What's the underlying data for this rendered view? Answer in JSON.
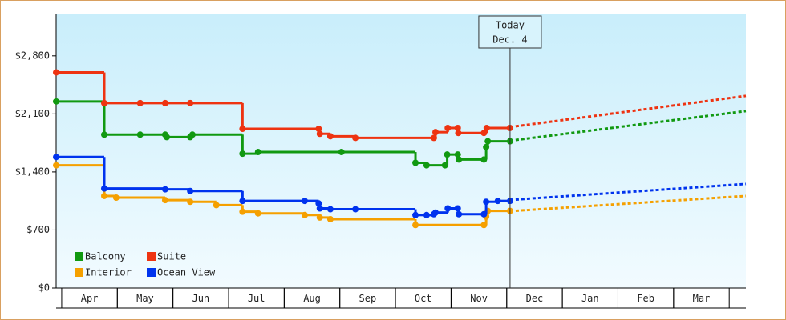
{
  "chart_data": {
    "type": "step",
    "xlim": [
      -0.1,
      12.3
    ],
    "xticks": [
      {
        "value": 0.5,
        "label": "Apr"
      },
      {
        "value": 1.5,
        "label": "May"
      },
      {
        "value": 2.5,
        "label": "Jun"
      },
      {
        "value": 3.5,
        "label": "Jul"
      },
      {
        "value": 4.5,
        "label": "Aug"
      },
      {
        "value": 5.5,
        "label": "Sep"
      },
      {
        "value": 6.5,
        "label": "Oct"
      },
      {
        "value": 7.5,
        "label": "Nov"
      },
      {
        "value": 8.5,
        "label": "Dec"
      },
      {
        "value": 9.5,
        "label": "Jan"
      },
      {
        "value": 10.5,
        "label": "Feb"
      },
      {
        "value": 11.5,
        "label": "Mar"
      }
    ],
    "ylim": [
      0,
      3300
    ],
    "yticks": [
      {
        "value": 0,
        "label": "$0"
      },
      {
        "value": 700,
        "label": "$700"
      },
      {
        "value": 1400,
        "label": "$1,400"
      },
      {
        "value": 2100,
        "label": "$2,100"
      },
      {
        "value": 2800,
        "label": "$2,800"
      }
    ],
    "annotation": {
      "x": 8.06,
      "lines": [
        "Today",
        "Dec. 4"
      ]
    },
    "forecast_x": [
      8.06,
      12.3
    ],
    "series": [
      {
        "name": "Balcony",
        "color": "#119911",
        "x": [
          -0.1,
          0.765,
          1.41,
          1.86,
          1.89,
          2.31,
          2.35,
          3.25,
          3.53,
          5.03,
          6.36,
          6.56,
          6.89,
          6.93,
          7.12,
          7.14,
          7.59,
          7.63,
          7.66,
          8.06
        ],
        "values": [
          2250,
          1850,
          1850,
          1850,
          1820,
          1820,
          1850,
          1620,
          1640,
          1640,
          1510,
          1480,
          1480,
          1610,
          1610,
          1550,
          1550,
          1700,
          1770,
          1770
        ],
        "forecast": [
          1777,
          2134
        ]
      },
      {
        "name": "Suite",
        "color": "#ee3311",
        "x": [
          -0.1,
          0.765,
          1.41,
          1.86,
          2.31,
          3.25,
          4.62,
          4.64,
          4.83,
          5.28,
          6.69,
          6.72,
          6.94,
          7.12,
          7.13,
          7.59,
          7.64,
          8.06
        ],
        "values": [
          2600,
          2230,
          2230,
          2230,
          2230,
          1920,
          1920,
          1860,
          1830,
          1810,
          1810,
          1880,
          1930,
          1930,
          1870,
          1870,
          1930,
          1930
        ],
        "forecast": [
          1941,
          2317
        ]
      },
      {
        "name": "Interior",
        "color": "#f5a000",
        "x": [
          -0.1,
          0.765,
          0.98,
          1.86,
          2.31,
          2.78,
          3.25,
          3.53,
          4.37,
          4.64,
          4.83,
          6.36,
          7.59,
          7.63,
          7.66,
          8.06
        ],
        "values": [
          1480,
          1110,
          1090,
          1060,
          1040,
          1000,
          920,
          900,
          880,
          850,
          830,
          760,
          760,
          860,
          930,
          930
        ],
        "forecast": [
          927,
          1110
        ]
      },
      {
        "name": "Ocean View",
        "color": "#0033ee",
        "x": [
          -0.1,
          0.765,
          1.86,
          2.31,
          3.25,
          4.37,
          4.62,
          4.64,
          4.83,
          5.28,
          6.36,
          6.56,
          6.69,
          6.72,
          6.94,
          7.12,
          7.14,
          7.59,
          7.63,
          7.84,
          8.06
        ],
        "values": [
          1580,
          1200,
          1190,
          1170,
          1050,
          1050,
          1020,
          960,
          950,
          950,
          880,
          880,
          890,
          910,
          960,
          960,
          890,
          890,
          1040,
          1050,
          1050
        ],
        "forecast": [
          1062,
          1255
        ]
      }
    ]
  }
}
